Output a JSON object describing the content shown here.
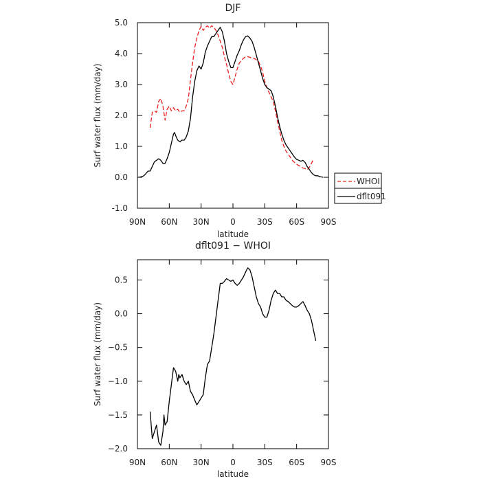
{
  "chart_data": [
    {
      "type": "line",
      "title": "DJF",
      "xlabel": "latitude",
      "ylabel": "Surf water flux (mm/day)",
      "xlim": [
        90,
        -90
      ],
      "ylim": [
        -1.0,
        5.0
      ],
      "x_ticks": [
        90,
        60,
        30,
        0,
        -30,
        -60,
        -90
      ],
      "x_tick_labels": [
        "90N",
        "60N",
        "30N",
        "0",
        "30S",
        "60S",
        "90S"
      ],
      "y_ticks": [
        -1.0,
        0.0,
        1.0,
        2.0,
        3.0,
        4.0,
        5.0
      ],
      "y_tick_labels": [
        "-1.0",
        "0.0",
        "1.0",
        "2.0",
        "3.0",
        "4.0",
        "5.0"
      ],
      "legend": {
        "placement": "right",
        "entries": [
          "WHOI",
          "dflt091"
        ]
      },
      "series": [
        {
          "name": "WHOI",
          "color": "#e8201e",
          "style": "dashed",
          "points": [
            [
              78,
              1.6
            ],
            [
              76,
              2.1
            ],
            [
              74,
              2.15
            ],
            [
              72,
              2.1
            ],
            [
              70,
              2.45
            ],
            [
              68,
              2.55
            ],
            [
              66,
              2.3
            ],
            [
              64,
              1.85
            ],
            [
              62,
              2.2
            ],
            [
              60,
              2.3
            ],
            [
              58,
              2.15
            ],
            [
              56,
              2.25
            ],
            [
              54,
              2.15
            ],
            [
              52,
              2.2
            ],
            [
              50,
              2.1
            ],
            [
              48,
              2.15
            ],
            [
              46,
              2.15
            ],
            [
              44,
              2.3
            ],
            [
              42,
              2.55
            ],
            [
              40,
              3.15
            ],
            [
              38,
              3.7
            ],
            [
              36,
              4.2
            ],
            [
              34,
              4.5
            ],
            [
              32,
              4.75
            ],
            [
              30,
              4.88
            ],
            [
              28,
              4.75
            ],
            [
              26,
              4.85
            ],
            [
              24,
              4.9
            ],
            [
              22,
              4.82
            ],
            [
              20,
              4.9
            ],
            [
              18,
              4.85
            ],
            [
              16,
              4.75
            ],
            [
              14,
              4.6
            ],
            [
              12,
              4.4
            ],
            [
              10,
              4.2
            ],
            [
              8,
              3.9
            ],
            [
              6,
              3.65
            ],
            [
              4,
              3.35
            ],
            [
              2,
              3.1
            ],
            [
              0,
              3.0
            ],
            [
              -2,
              3.25
            ],
            [
              -4,
              3.5
            ],
            [
              -6,
              3.7
            ],
            [
              -8,
              3.78
            ],
            [
              -10,
              3.85
            ],
            [
              -12,
              3.9
            ],
            [
              -14,
              3.9
            ],
            [
              -16,
              3.88
            ],
            [
              -18,
              3.85
            ],
            [
              -20,
              3.85
            ],
            [
              -22,
              3.8
            ],
            [
              -24,
              3.75
            ],
            [
              -26,
              3.6
            ],
            [
              -28,
              3.4
            ],
            [
              -30,
              3.1
            ],
            [
              -32,
              2.9
            ],
            [
              -34,
              2.75
            ],
            [
              -36,
              2.6
            ],
            [
              -38,
              2.45
            ],
            [
              -40,
              2.15
            ],
            [
              -42,
              1.8
            ],
            [
              -44,
              1.5
            ],
            [
              -46,
              1.2
            ],
            [
              -48,
              1.0
            ],
            [
              -50,
              0.85
            ],
            [
              -52,
              0.75
            ],
            [
              -54,
              0.65
            ],
            [
              -56,
              0.55
            ],
            [
              -58,
              0.48
            ],
            [
              -60,
              0.42
            ],
            [
              -62,
              0.38
            ],
            [
              -64,
              0.35
            ],
            [
              -66,
              0.3
            ],
            [
              -68,
              0.28
            ],
            [
              -70,
              0.25
            ],
            [
              -72,
              0.32
            ],
            [
              -74,
              0.45
            ],
            [
              -76,
              0.6
            ]
          ]
        },
        {
          "name": "dflt091",
          "color": "#000000",
          "style": "solid",
          "points": [
            [
              89,
              0.0
            ],
            [
              86,
              0.02
            ],
            [
              84,
              0.05
            ],
            [
              82,
              0.12
            ],
            [
              80,
              0.2
            ],
            [
              78,
              0.2
            ],
            [
              76,
              0.35
            ],
            [
              74,
              0.5
            ],
            [
              72,
              0.55
            ],
            [
              70,
              0.6
            ],
            [
              68,
              0.55
            ],
            [
              66,
              0.45
            ],
            [
              64,
              0.45
            ],
            [
              62,
              0.6
            ],
            [
              60,
              0.8
            ],
            [
              58,
              1.1
            ],
            [
              56,
              1.4
            ],
            [
              55,
              1.45
            ],
            [
              54,
              1.35
            ],
            [
              52,
              1.2
            ],
            [
              50,
              1.15
            ],
            [
              48,
              1.2
            ],
            [
              46,
              1.2
            ],
            [
              44,
              1.3
            ],
            [
              42,
              1.5
            ],
            [
              40,
              1.9
            ],
            [
              38,
              2.6
            ],
            [
              36,
              3.1
            ],
            [
              34,
              3.45
            ],
            [
              32,
              3.6
            ],
            [
              30,
              3.5
            ],
            [
              28,
              3.7
            ],
            [
              26,
              4.05
            ],
            [
              24,
              4.25
            ],
            [
              22,
              4.4
            ],
            [
              20,
              4.55
            ],
            [
              18,
              4.55
            ],
            [
              16,
              4.65
            ],
            [
              14,
              4.75
            ],
            [
              12,
              4.85
            ],
            [
              10,
              4.7
            ],
            [
              8,
              4.4
            ],
            [
              6,
              4.0
            ],
            [
              4,
              3.75
            ],
            [
              2,
              3.55
            ],
            [
              0,
              3.55
            ],
            [
              -2,
              3.75
            ],
            [
              -4,
              3.95
            ],
            [
              -6,
              4.1
            ],
            [
              -8,
              4.3
            ],
            [
              -10,
              4.45
            ],
            [
              -12,
              4.55
            ],
            [
              -14,
              4.57
            ],
            [
              -16,
              4.5
            ],
            [
              -18,
              4.4
            ],
            [
              -20,
              4.2
            ],
            [
              -22,
              3.95
            ],
            [
              -24,
              3.7
            ],
            [
              -26,
              3.45
            ],
            [
              -28,
              3.2
            ],
            [
              -30,
              3.0
            ],
            [
              -32,
              2.9
            ],
            [
              -34,
              2.85
            ],
            [
              -36,
              2.8
            ],
            [
              -38,
              2.6
            ],
            [
              -40,
              2.3
            ],
            [
              -42,
              1.95
            ],
            [
              -44,
              1.65
            ],
            [
              -46,
              1.4
            ],
            [
              -48,
              1.2
            ],
            [
              -50,
              1.05
            ],
            [
              -52,
              0.95
            ],
            [
              -54,
              0.85
            ],
            [
              -56,
              0.75
            ],
            [
              -58,
              0.65
            ],
            [
              -60,
              0.58
            ],
            [
              -62,
              0.55
            ],
            [
              -64,
              0.52
            ],
            [
              -66,
              0.55
            ],
            [
              -68,
              0.48
            ],
            [
              -70,
              0.35
            ],
            [
              -72,
              0.25
            ],
            [
              -74,
              0.15
            ],
            [
              -76,
              0.08
            ],
            [
              -78,
              0.05
            ],
            [
              -80,
              0.05
            ],
            [
              -82,
              0.02
            ],
            [
              -85,
              0.0
            ]
          ]
        }
      ]
    },
    {
      "type": "line",
      "title": "dflt091 − WHOI",
      "xlabel": "latitude",
      "ylabel": "Surf water flux (mm/day)",
      "xlim": [
        90,
        -90
      ],
      "ylim": [
        -2.0,
        0.8
      ],
      "x_ticks": [
        90,
        60,
        30,
        0,
        -30,
        -60,
        -90
      ],
      "x_tick_labels": [
        "90N",
        "60N",
        "30N",
        "0",
        "30S",
        "60S",
        "90S"
      ],
      "y_ticks": [
        -2.0,
        -1.5,
        -1.0,
        -0.5,
        0.0,
        0.5
      ],
      "y_tick_labels": [
        "−2.0",
        "−1.5",
        "−1.0",
        "−0.5",
        "0.0",
        "0.5"
      ],
      "series": [
        {
          "color": "#000000",
          "style": "solid",
          "points": [
            [
              78,
              -1.45
            ],
            [
              76,
              -1.85
            ],
            [
              74,
              -1.75
            ],
            [
              72,
              -1.65
            ],
            [
              70,
              -1.9
            ],
            [
              68,
              -1.95
            ],
            [
              66,
              -1.75
            ],
            [
              65,
              -1.5
            ],
            [
              64,
              -1.65
            ],
            [
              62,
              -1.6
            ],
            [
              60,
              -1.3
            ],
            [
              58,
              -1.05
            ],
            [
              56,
              -0.8
            ],
            [
              54,
              -0.85
            ],
            [
              52,
              -1.0
            ],
            [
              51,
              -0.9
            ],
            [
              50,
              -0.95
            ],
            [
              48,
              -0.9
            ],
            [
              46,
              -1.0
            ],
            [
              44,
              -1.05
            ],
            [
              42,
              -1.0
            ],
            [
              40,
              -1.15
            ],
            [
              38,
              -1.2
            ],
            [
              36,
              -1.28
            ],
            [
              34,
              -1.35
            ],
            [
              32,
              -1.3
            ],
            [
              30,
              -1.25
            ],
            [
              28,
              -1.2
            ],
            [
              26,
              -0.95
            ],
            [
              24,
              -0.75
            ],
            [
              22,
              -0.7
            ],
            [
              20,
              -0.5
            ],
            [
              18,
              -0.3
            ],
            [
              16,
              -0.05
            ],
            [
              14,
              0.2
            ],
            [
              12,
              0.45
            ],
            [
              10,
              0.45
            ],
            [
              8,
              0.48
            ],
            [
              6,
              0.52
            ],
            [
              4,
              0.5
            ],
            [
              2,
              0.48
            ],
            [
              0,
              0.5
            ],
            [
              -2,
              0.45
            ],
            [
              -4,
              0.42
            ],
            [
              -6,
              0.45
            ],
            [
              -8,
              0.5
            ],
            [
              -10,
              0.55
            ],
            [
              -12,
              0.62
            ],
            [
              -14,
              0.68
            ],
            [
              -16,
              0.65
            ],
            [
              -18,
              0.55
            ],
            [
              -20,
              0.4
            ],
            [
              -22,
              0.25
            ],
            [
              -24,
              0.15
            ],
            [
              -26,
              0.1
            ],
            [
              -28,
              0.0
            ],
            [
              -30,
              -0.05
            ],
            [
              -32,
              -0.05
            ],
            [
              -34,
              0.05
            ],
            [
              -36,
              0.2
            ],
            [
              -38,
              0.3
            ],
            [
              -40,
              0.35
            ],
            [
              -42,
              0.3
            ],
            [
              -44,
              0.3
            ],
            [
              -46,
              0.25
            ],
            [
              -48,
              0.25
            ],
            [
              -50,
              0.2
            ],
            [
              -52,
              0.18
            ],
            [
              -54,
              0.15
            ],
            [
              -56,
              0.12
            ],
            [
              -58,
              0.1
            ],
            [
              -60,
              0.1
            ],
            [
              -62,
              0.12
            ],
            [
              -64,
              0.15
            ],
            [
              -66,
              0.18
            ],
            [
              -68,
              0.12
            ],
            [
              -70,
              0.05
            ],
            [
              -72,
              0.0
            ],
            [
              -74,
              -0.1
            ],
            [
              -76,
              -0.25
            ],
            [
              -78,
              -0.4
            ]
          ]
        }
      ]
    }
  ]
}
